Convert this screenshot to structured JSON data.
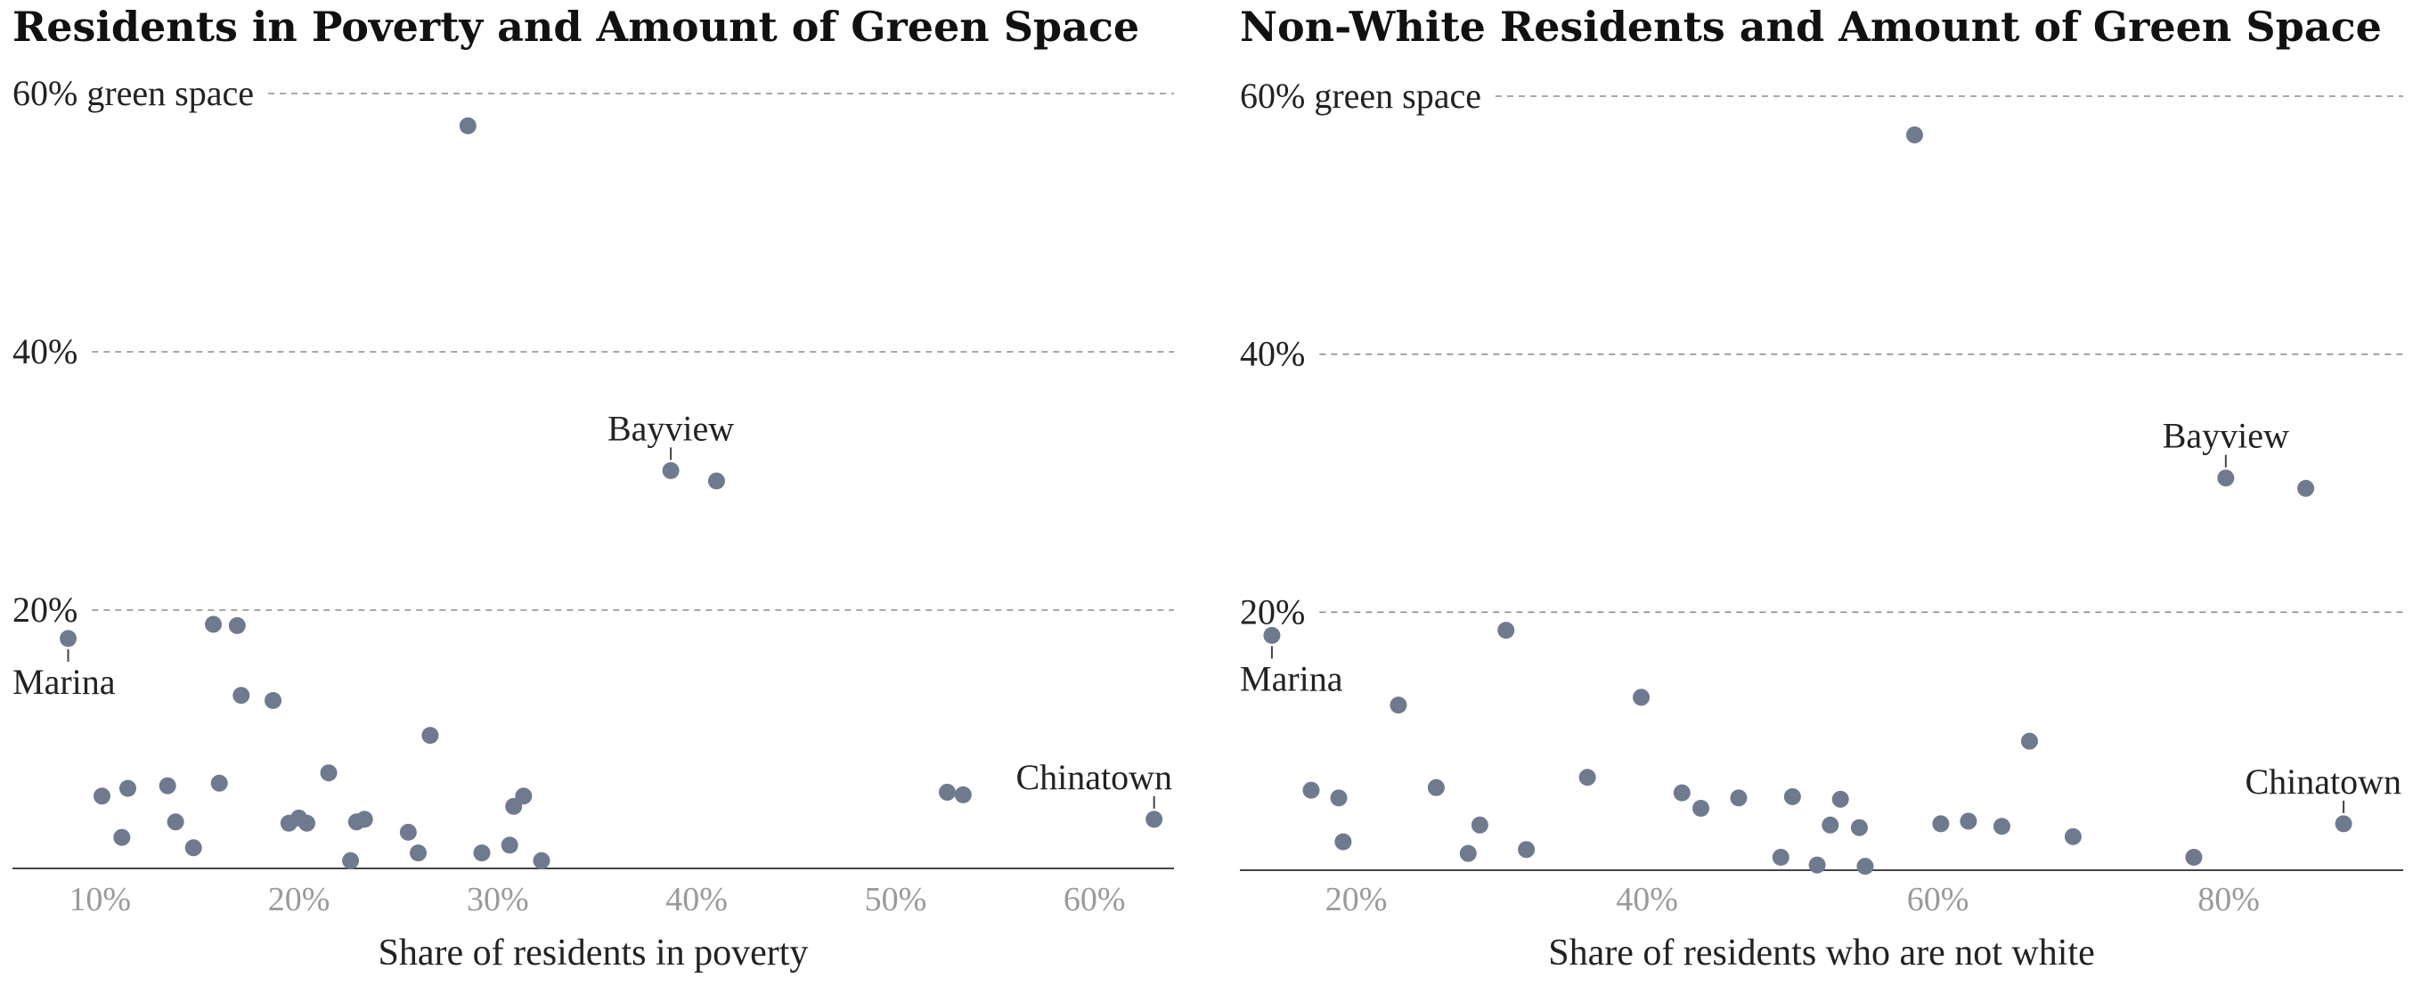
{
  "chart_data": [
    {
      "type": "scatter",
      "title": "Residents in Poverty and Amount of Green Space",
      "xlabel": "Share of residents in poverty",
      "ylabel": "",
      "xlim": [
        5.6,
        64
      ],
      "ylim": [
        0,
        60
      ],
      "x_ticks": [
        10,
        20,
        30,
        40,
        50,
        60
      ],
      "x_tick_labels": [
        "10%",
        "20%",
        "30%",
        "40%",
        "50%",
        "60%"
      ],
      "y_ticks": [
        20,
        40,
        60
      ],
      "y_tick_labels": [
        "20%",
        "40%",
        "60% green space"
      ],
      "grid": "horizontal dashed",
      "point_color": "#6f7a8f",
      "points": [
        {
          "x": 8.4,
          "y": 17.8
        },
        {
          "x": 10.1,
          "y": 5.6
        },
        {
          "x": 11.1,
          "y": 2.4
        },
        {
          "x": 11.4,
          "y": 6.2
        },
        {
          "x": 13.4,
          "y": 6.4
        },
        {
          "x": 13.8,
          "y": 3.6
        },
        {
          "x": 14.7,
          "y": 1.6
        },
        {
          "x": 15.7,
          "y": 18.9
        },
        {
          "x": 16.0,
          "y": 6.6
        },
        {
          "x": 16.9,
          "y": 18.8
        },
        {
          "x": 17.1,
          "y": 13.4
        },
        {
          "x": 18.7,
          "y": 13.0
        },
        {
          "x": 19.5,
          "y": 3.5
        },
        {
          "x": 20.0,
          "y": 3.9
        },
        {
          "x": 20.4,
          "y": 3.5
        },
        {
          "x": 21.5,
          "y": 7.4
        },
        {
          "x": 22.6,
          "y": 0.6
        },
        {
          "x": 22.9,
          "y": 3.6
        },
        {
          "x": 23.3,
          "y": 3.8
        },
        {
          "x": 25.5,
          "y": 2.8
        },
        {
          "x": 26.0,
          "y": 1.2
        },
        {
          "x": 26.6,
          "y": 10.3
        },
        {
          "x": 28.5,
          "y": 57.5
        },
        {
          "x": 29.2,
          "y": 1.2
        },
        {
          "x": 30.6,
          "y": 1.8
        },
        {
          "x": 30.8,
          "y": 4.8
        },
        {
          "x": 31.3,
          "y": 5.6
        },
        {
          "x": 32.2,
          "y": 0.6
        },
        {
          "x": 38.7,
          "y": 30.8
        },
        {
          "x": 41.0,
          "y": 30.0
        },
        {
          "x": 52.6,
          "y": 5.9
        },
        {
          "x": 53.4,
          "y": 5.7
        },
        {
          "x": 63.0,
          "y": 3.8
        }
      ],
      "annotations": [
        {
          "text": "Marina",
          "x": 8.4,
          "y": 17.8,
          "placement": "below"
        },
        {
          "text": "Bayview",
          "x": 38.7,
          "y": 30.8,
          "placement": "above"
        },
        {
          "text": "Chinatown",
          "x": 63.0,
          "y": 3.8,
          "placement": "above"
        }
      ]
    },
    {
      "type": "scatter",
      "title": "Non-White Residents and Amount of Green Space",
      "xlabel": "Share of residents who are not white",
      "ylabel": "",
      "xlim": [
        12,
        92
      ],
      "ylim": [
        0,
        60
      ],
      "x_ticks": [
        20,
        40,
        60,
        80
      ],
      "x_tick_labels": [
        "20%",
        "40%",
        "60%",
        "80%"
      ],
      "y_ticks": [
        20,
        40,
        60
      ],
      "y_tick_labels": [
        "20%",
        "40%",
        "60% green space"
      ],
      "grid": "horizontal dashed",
      "point_color": "#6f7a8f",
      "points": [
        {
          "x": 14.2,
          "y": 18.2
        },
        {
          "x": 16.9,
          "y": 6.2
        },
        {
          "x": 18.8,
          "y": 5.6
        },
        {
          "x": 19.1,
          "y": 2.2
        },
        {
          "x": 22.9,
          "y": 12.8
        },
        {
          "x": 25.5,
          "y": 6.4
        },
        {
          "x": 27.7,
          "y": 1.3
        },
        {
          "x": 28.5,
          "y": 3.5
        },
        {
          "x": 31.7,
          "y": 1.6
        },
        {
          "x": 30.3,
          "y": 18.6
        },
        {
          "x": 35.9,
          "y": 7.2
        },
        {
          "x": 39.6,
          "y": 13.4
        },
        {
          "x": 42.4,
          "y": 6.0
        },
        {
          "x": 43.7,
          "y": 4.8
        },
        {
          "x": 46.3,
          "y": 5.6
        },
        {
          "x": 49.2,
          "y": 1.0
        },
        {
          "x": 50.0,
          "y": 5.7
        },
        {
          "x": 51.7,
          "y": 0.4
        },
        {
          "x": 52.6,
          "y": 3.5
        },
        {
          "x": 53.3,
          "y": 5.5
        },
        {
          "x": 54.6,
          "y": 3.3
        },
        {
          "x": 55.0,
          "y": 0.3
        },
        {
          "x": 58.4,
          "y": 57.0
        },
        {
          "x": 60.2,
          "y": 3.6
        },
        {
          "x": 62.1,
          "y": 3.8
        },
        {
          "x": 64.4,
          "y": 3.4
        },
        {
          "x": 66.3,
          "y": 10.0
        },
        {
          "x": 69.3,
          "y": 2.6
        },
        {
          "x": 77.6,
          "y": 1.0
        },
        {
          "x": 79.8,
          "y": 30.4
        },
        {
          "x": 85.3,
          "y": 29.6
        },
        {
          "x": 87.9,
          "y": 3.6
        }
      ],
      "annotations": [
        {
          "text": "Marina",
          "x": 14.2,
          "y": 18.2,
          "placement": "below"
        },
        {
          "text": "Bayview",
          "x": 79.8,
          "y": 30.4,
          "placement": "above"
        },
        {
          "text": "Chinatown",
          "x": 87.9,
          "y": 3.6,
          "placement": "above"
        }
      ]
    }
  ]
}
